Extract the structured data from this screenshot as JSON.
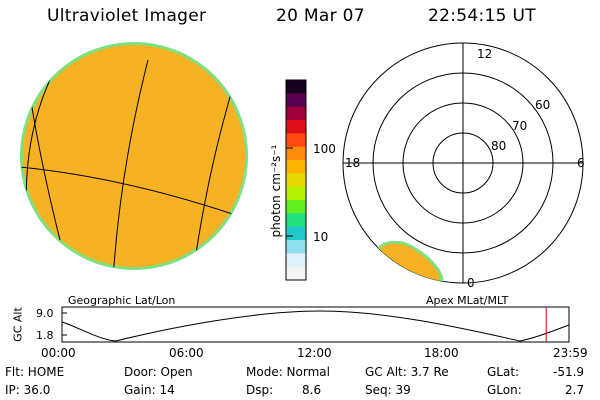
{
  "header": {
    "instrument": "Ultraviolet Imager",
    "date": "20 Mar 07",
    "time": "22:54:15 UT"
  },
  "colorbar": {
    "unit_label": "photon cm⁻²s⁻¹",
    "tick_labels": [
      "100",
      "10"
    ],
    "colors": [
      "#1a0020",
      "#5a0050",
      "#a0003a",
      "#e0101a",
      "#ff4a10",
      "#ff8a10",
      "#ffb400",
      "#e8d800",
      "#b4f000",
      "#60f020",
      "#20e080",
      "#20c8c8",
      "#90e0f0",
      "#dff0f8",
      "#f4f4f4"
    ]
  },
  "left_panel": {
    "caption": "Geographic Lat/Lon",
    "disk_color": "#f5b020",
    "rim_color": "#7ee07e"
  },
  "right_panel": {
    "caption": "Apex MLat/MLT",
    "lat_labels": [
      "80",
      "70",
      "60"
    ],
    "mlt_labels": {
      "top": "12",
      "left": "18",
      "right": "6",
      "bottom": "0"
    }
  },
  "orbit": {
    "ylabel": "GC Alt",
    "ytick_labels": [
      "9.0",
      "1.8"
    ],
    "xtick_labels": [
      "00:00",
      "06:00",
      "12:00",
      "18:00",
      "23:59"
    ],
    "current_time_fraction": 0.955,
    "marker_color": "#e00000"
  },
  "status": {
    "flt": "Flt: HOME",
    "ip": "IP: 36.0",
    "door": "Door: Open",
    "gain": "Gain: 14",
    "mode": "Mode: Normal",
    "dsp_label": "Dsp:",
    "dsp_value": "8.6",
    "gcalt": "GC Alt: 3.7 Re",
    "seq": "Seq: 39",
    "glat_label": "GLat:",
    "glat_value": "-51.9",
    "glon_label": "GLon:",
    "glon_value": "2.7"
  }
}
